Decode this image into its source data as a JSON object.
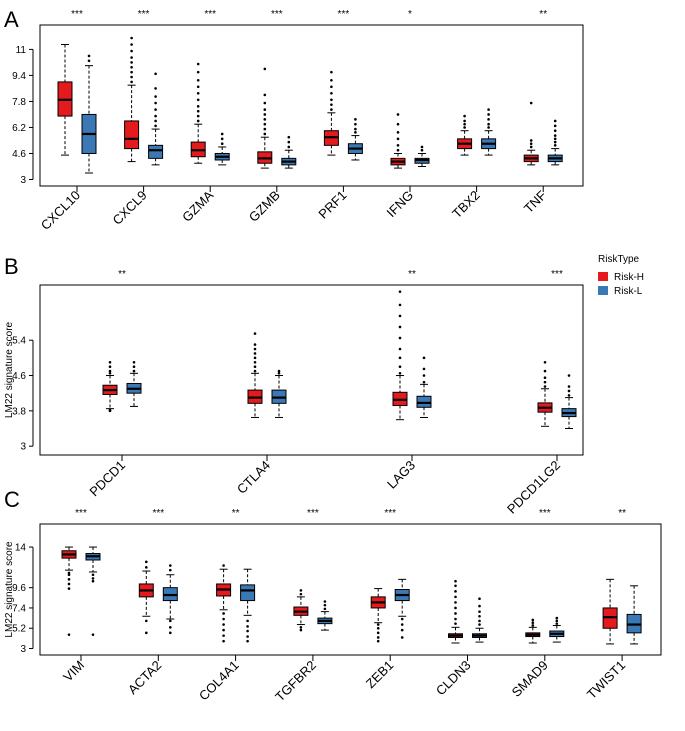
{
  "legend": {
    "title": "RiskType",
    "items": [
      {
        "label": "Risk-H",
        "color": "#e41a1c"
      },
      {
        "label": "Risk-L",
        "color": "#3a78b6"
      }
    ]
  },
  "chart_data": [
    {
      "type": "box",
      "panel": "A",
      "ylabel": "",
      "ylim": [
        2.6,
        12.5
      ],
      "yticks": [
        3,
        4.6,
        6.2,
        7.8,
        9.4,
        11
      ],
      "categories": [
        "CXCL10",
        "CXCL9",
        "GZMA",
        "GZMB",
        "PRF1",
        "IFNG",
        "TBX2",
        "TNF"
      ],
      "significance": [
        "***",
        "***",
        "***",
        "***",
        "***",
        "*",
        "",
        "**"
      ],
      "series": [
        {
          "name": "Risk-H",
          "color": "#e41a1c",
          "boxes": [
            {
              "min": 4.5,
              "q1": 6.9,
              "median": 7.9,
              "q3": 9.0,
              "max": 11.3,
              "outliers": []
            },
            {
              "min": 4.1,
              "q1": 4.9,
              "median": 5.5,
              "q3": 6.6,
              "max": 8.8,
              "outliers": [
                9.0,
                9.3,
                9.6,
                9.9,
                10.2,
                10.5,
                10.9,
                11.3,
                11.7
              ]
            },
            {
              "min": 4.0,
              "q1": 4.4,
              "median": 4.8,
              "q3": 5.3,
              "max": 6.4,
              "outliers": [
                6.6,
                6.9,
                7.2,
                7.5,
                7.9,
                8.3,
                8.7,
                9.1,
                9.6,
                10.1
              ]
            },
            {
              "min": 3.7,
              "q1": 4.0,
              "median": 4.3,
              "q3": 4.7,
              "max": 5.6,
              "outliers": [
                5.8,
                6.1,
                6.4,
                6.7,
                7.0,
                7.3,
                7.7,
                8.2,
                9.8
              ]
            },
            {
              "min": 4.5,
              "q1": 5.1,
              "median": 5.6,
              "q3": 6.0,
              "max": 7.1,
              "outliers": [
                7.3,
                7.6,
                7.9,
                8.3,
                8.7,
                9.1,
                9.6
              ]
            },
            {
              "min": 3.7,
              "q1": 3.9,
              "median": 4.1,
              "q3": 4.3,
              "max": 4.6,
              "outliers": [
                4.8,
                5.1,
                5.5,
                5.9,
                6.4,
                7.0
              ]
            },
            {
              "min": 4.5,
              "q1": 4.9,
              "median": 5.2,
              "q3": 5.5,
              "max": 6.0,
              "outliers": [
                6.2,
                6.4,
                6.6,
                6.9
              ]
            },
            {
              "min": 3.9,
              "q1": 4.1,
              "median": 4.3,
              "q3": 4.5,
              "max": 4.8,
              "outliers": [
                5.0,
                5.2,
                5.4,
                7.7
              ]
            }
          ]
        },
        {
          "name": "Risk-L",
          "color": "#3a78b6",
          "boxes": [
            {
              "min": 3.4,
              "q1": 4.6,
              "median": 5.8,
              "q3": 7.0,
              "max": 10.0,
              "outliers": [
                10.3,
                10.6
              ]
            },
            {
              "min": 3.9,
              "q1": 4.3,
              "median": 4.8,
              "q3": 5.1,
              "max": 6.1,
              "outliers": [
                6.3,
                6.6,
                6.9,
                7.3,
                7.7,
                8.1,
                8.6,
                9.5
              ]
            },
            {
              "min": 3.9,
              "q1": 4.2,
              "median": 4.4,
              "q3": 4.6,
              "max": 5.0,
              "outliers": [
                5.2,
                5.5,
                5.8
              ]
            },
            {
              "min": 3.7,
              "q1": 3.9,
              "median": 4.1,
              "q3": 4.3,
              "max": 4.8,
              "outliers": [
                5.0,
                5.3,
                5.6
              ]
            },
            {
              "min": 4.2,
              "q1": 4.6,
              "median": 4.9,
              "q3": 5.2,
              "max": 5.7,
              "outliers": [
                5.9,
                6.1,
                6.4,
                6.7
              ]
            },
            {
              "min": 3.8,
              "q1": 4.0,
              "median": 4.2,
              "q3": 4.3,
              "max": 4.6,
              "outliers": [
                4.8,
                5.0
              ]
            },
            {
              "min": 4.5,
              "q1": 4.9,
              "median": 5.2,
              "q3": 5.5,
              "max": 6.0,
              "outliers": [
                6.2,
                6.4,
                6.7,
                7.0,
                7.3
              ]
            },
            {
              "min": 3.9,
              "q1": 4.1,
              "median": 4.3,
              "q3": 4.5,
              "max": 4.9,
              "outliers": [
                5.1,
                5.3,
                5.5,
                5.7,
                6.0,
                6.3,
                6.6
              ]
            }
          ]
        }
      ]
    },
    {
      "type": "box",
      "panel": "B",
      "ylabel": "LM22 signature score",
      "ylim": [
        2.8,
        6.65
      ],
      "yticks": [
        3,
        3.8,
        4.6,
        5.4
      ],
      "categories": [
        "PDCD1",
        "CTLA4",
        "LAG3",
        "PDCD1LG2"
      ],
      "significance": [
        "**",
        "",
        "**",
        "***"
      ],
      "series": [
        {
          "name": "Risk-H",
          "color": "#e41a1c",
          "boxes": [
            {
              "min": 3.85,
              "q1": 4.17,
              "median": 4.27,
              "q3": 4.38,
              "max": 4.6,
              "outliers": [
                3.8,
                3.82,
                4.65,
                4.7,
                4.8,
                4.9
              ]
            },
            {
              "min": 3.65,
              "q1": 3.97,
              "median": 4.1,
              "q3": 4.27,
              "max": 4.65,
              "outliers": [
                4.7,
                4.8,
                4.9,
                5.0,
                5.1,
                5.2,
                5.3,
                5.55
              ]
            },
            {
              "min": 3.6,
              "q1": 3.92,
              "median": 4.05,
              "q3": 4.22,
              "max": 4.6,
              "outliers": [
                4.65,
                4.8,
                5.0,
                5.2,
                5.45,
                5.7,
                5.95,
                6.2,
                6.5
              ]
            },
            {
              "min": 3.45,
              "q1": 3.77,
              "median": 3.87,
              "q3": 3.98,
              "max": 4.3,
              "outliers": [
                4.35,
                4.45,
                4.55,
                4.7,
                4.9
              ]
            }
          ]
        },
        {
          "name": "Risk-L",
          "color": "#3a78b6",
          "boxes": [
            {
              "min": 3.9,
              "q1": 4.2,
              "median": 4.3,
              "q3": 4.42,
              "max": 4.65,
              "outliers": [
                4.7,
                4.8,
                4.9
              ]
            },
            {
              "min": 3.65,
              "q1": 3.97,
              "median": 4.1,
              "q3": 4.27,
              "max": 4.6,
              "outliers": [
                4.65,
                4.7
              ]
            },
            {
              "min": 3.65,
              "q1": 3.88,
              "median": 3.98,
              "q3": 4.13,
              "max": 4.4,
              "outliers": [
                4.45,
                4.6,
                4.75,
                5.0
              ]
            },
            {
              "min": 3.4,
              "q1": 3.67,
              "median": 3.75,
              "q3": 3.85,
              "max": 4.1,
              "outliers": [
                4.15,
                4.25,
                4.35,
                4.6
              ]
            }
          ]
        }
      ]
    },
    {
      "type": "box",
      "panel": "C",
      "ylabel": "LM22 signature score",
      "ylim": [
        2.3,
        16.5
      ],
      "yticks": [
        3,
        5.2,
        7.4,
        9.6,
        14
      ],
      "categories": [
        "VIM",
        "ACTA2",
        "COL4A1",
        "TGFBR2",
        "ZEB1",
        "CLDN3",
        "SMAD9",
        "TWIST1"
      ],
      "significance": [
        "***",
        "***",
        "**",
        "***",
        "***",
        "",
        "***",
        "**"
      ],
      "series": [
        {
          "name": "Risk-H",
          "color": "#e41a1c",
          "boxes": [
            {
              "min": 11.5,
              "q1": 12.8,
              "median": 13.2,
              "q3": 13.6,
              "max": 14.0,
              "outliers": [
                4.5,
                9.5,
                10.0,
                10.5,
                11.0,
                11.2
              ]
            },
            {
              "min": 6.5,
              "q1": 8.6,
              "median": 9.3,
              "q3": 10.0,
              "max": 11.4,
              "outliers": [
                4.7,
                6.0,
                11.8,
                12.4
              ]
            },
            {
              "min": 7.2,
              "q1": 8.7,
              "median": 9.4,
              "q3": 10.0,
              "max": 11.6,
              "outliers": [
                3.8,
                4.4,
                5.0,
                5.6,
                6.2,
                6.8,
                12.0
              ]
            },
            {
              "min": 5.6,
              "q1": 6.6,
              "median": 7.0,
              "q3": 7.5,
              "max": 8.6,
              "outliers": [
                5.0,
                5.3,
                8.9,
                9.3
              ]
            },
            {
              "min": 5.8,
              "q1": 7.4,
              "median": 8.0,
              "q3": 8.6,
              "max": 9.5,
              "outliers": [
                3.8,
                4.2,
                4.7,
                5.2,
                5.6
              ]
            },
            {
              "min": 3.6,
              "q1": 4.2,
              "median": 4.4,
              "q3": 4.6,
              "max": 5.3,
              "outliers": [
                5.7,
                6.2,
                6.8,
                7.4,
                8.0,
                8.6,
                9.2,
                9.8,
                10.3
              ]
            },
            {
              "min": 3.6,
              "q1": 4.3,
              "median": 4.5,
              "q3": 4.7,
              "max": 5.3,
              "outliers": [
                5.5,
                5.8,
                6.1
              ]
            },
            {
              "min": 3.5,
              "q1": 5.2,
              "median": 6.4,
              "q3": 7.4,
              "max": 10.5,
              "outliers": []
            }
          ]
        },
        {
          "name": "Risk-L",
          "color": "#3a78b6",
          "boxes": [
            {
              "min": 11.3,
              "q1": 12.6,
              "median": 13.0,
              "q3": 13.3,
              "max": 14.0,
              "outliers": [
                4.5,
                10.3,
                10.6,
                11.0
              ]
            },
            {
              "min": 6.2,
              "q1": 8.2,
              "median": 8.8,
              "q3": 9.6,
              "max": 11.0,
              "outliers": [
                4.7,
                5.3,
                6.0,
                11.5,
                12.0
              ]
            },
            {
              "min": 6.6,
              "q1": 8.2,
              "median": 9.3,
              "q3": 9.9,
              "max": 11.6,
              "outliers": [
                3.8,
                4.3,
                4.9,
                5.4,
                6.0
              ]
            },
            {
              "min": 5.0,
              "q1": 5.7,
              "median": 6.0,
              "q3": 6.3,
              "max": 7.0,
              "outliers": [
                7.3,
                7.7,
                8.1
              ]
            },
            {
              "min": 6.5,
              "q1": 8.2,
              "median": 8.8,
              "q3": 9.4,
              "max": 10.5,
              "outliers": [
                4.2,
                5.0,
                5.6,
                6.2
              ]
            },
            {
              "min": 3.7,
              "q1": 4.2,
              "median": 4.4,
              "q3": 4.6,
              "max": 5.2,
              "outliers": [
                5.6,
                6.0,
                6.5,
                7.0,
                7.6,
                8.4
              ]
            },
            {
              "min": 3.7,
              "q1": 4.3,
              "median": 4.6,
              "q3": 4.9,
              "max": 5.5,
              "outliers": [
                5.7,
                6.0,
                6.3
              ]
            },
            {
              "min": 3.5,
              "q1": 4.7,
              "median": 5.6,
              "q3": 6.7,
              "max": 9.8,
              "outliers": []
            }
          ]
        }
      ]
    }
  ]
}
